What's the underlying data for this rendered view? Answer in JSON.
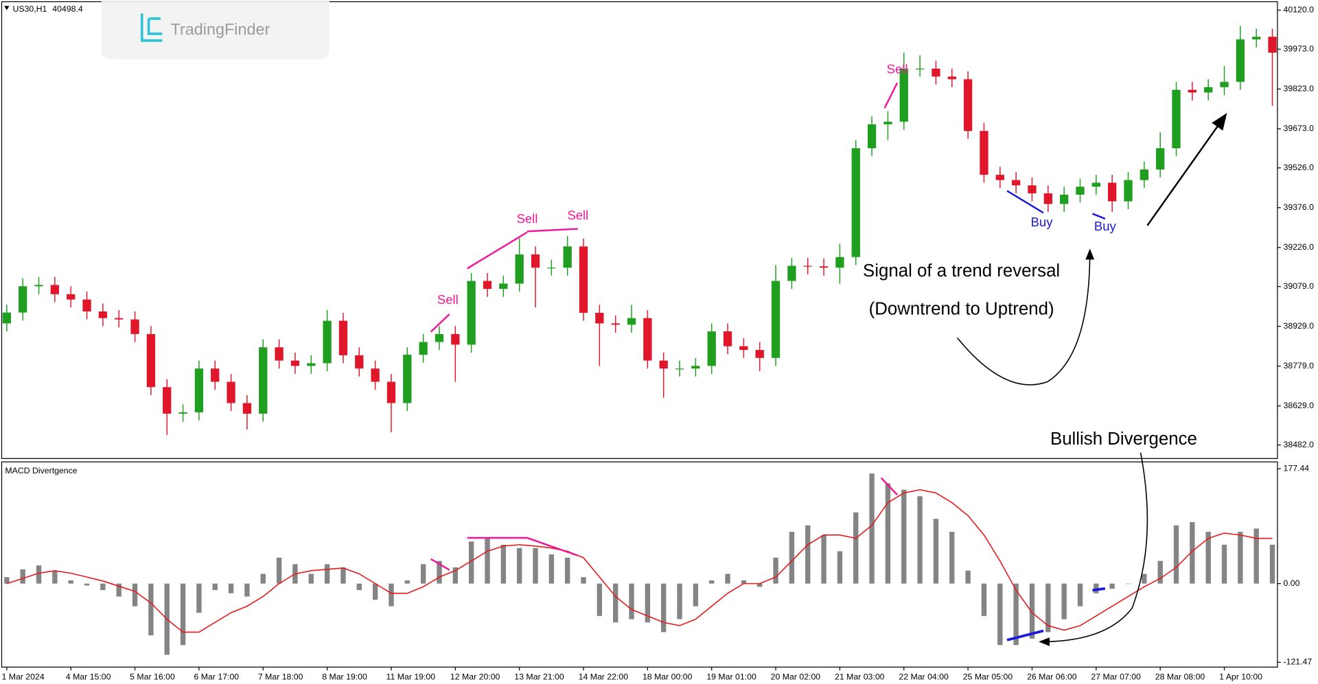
{
  "chart_data": {
    "type": "candlestick",
    "symbol": "US30,H1",
    "header_price": 40498.4,
    "logo": "TradingFinder",
    "up_color": "#1f9e1f",
    "down_color": "#e0162b",
    "categories": [
      "1 Mar 2024",
      null,
      null,
      null,
      "4 Mar 15:00",
      null,
      null,
      null,
      "5 Mar 16:00",
      null,
      null,
      null,
      "6 Mar 17:00",
      null,
      null,
      null,
      "7 Mar 18:00",
      null,
      null,
      null,
      "8 Mar 19:00",
      null,
      null,
      null,
      "11 Mar 19:00",
      null,
      null,
      null,
      "12 Mar 20:00",
      null,
      null,
      null,
      "13 Mar 21:00",
      null,
      null,
      null,
      "14 Mar 22:00",
      null,
      null,
      null,
      "18 Mar 00:00",
      null,
      null,
      null,
      "19 Mar 01:00",
      null,
      null,
      null,
      "20 Mar 02:00",
      null,
      null,
      null,
      "21 Mar 03:00",
      null,
      null,
      null,
      "22 Mar 04:00",
      null,
      null,
      null,
      "25 Mar 05:00",
      null,
      null,
      null,
      "26 Mar 06:00",
      null,
      null,
      null,
      "27 Mar 07:00",
      null,
      null,
      null,
      "28 Mar 08:00",
      null,
      null,
      null,
      "1 Apr 10:00",
      null,
      null,
      null
    ],
    "open": [
      38940,
      38981,
      39080,
      39085,
      39050,
      39030,
      38985,
      38960,
      38955,
      38900,
      38700,
      38600,
      38605,
      38770,
      38720,
      38640,
      38600,
      38850,
      38800,
      38780,
      38790,
      38950,
      38820,
      38770,
      38720,
      38640,
      38822,
      38870,
      38900,
      38860,
      39100,
      39070,
      39090,
      39200,
      39150,
      39150,
      39230,
      38980,
      38940,
      38935,
      38960,
      38800,
      38770,
      38770,
      38780,
      38910,
      38854,
      38840,
      38810,
      39100,
      39157,
      39155,
      39150,
      39190,
      39600,
      39690,
      39700,
      39900,
      39900,
      39870,
      39860,
      39665,
      39500,
      39480,
      39460,
      39430,
      39390,
      39425,
      39455,
      39470,
      39400,
      39480,
      39520,
      39600,
      39820,
      39810,
      39830,
      39850,
      40010,
      40020
    ],
    "high": [
      39011,
      39110,
      39115,
      39115,
      39080,
      39060,
      39015,
      38990,
      38985,
      38930,
      38730,
      38635,
      38800,
      38800,
      38750,
      38670,
      38880,
      38880,
      38830,
      38820,
      38990,
      38980,
      38850,
      38800,
      38750,
      38850,
      38900,
      38930,
      38930,
      39130,
      39130,
      39120,
      39260,
      39230,
      39180,
      39270,
      39260,
      39010,
      38970,
      39010,
      38990,
      38830,
      38800,
      38810,
      38940,
      38940,
      38884,
      38870,
      39160,
      39187,
      39187,
      39185,
      39240,
      39630,
      39720,
      39740,
      39960,
      39950,
      39930,
      39900,
      39890,
      39695,
      39530,
      39510,
      39490,
      39460,
      39455,
      39485,
      39500,
      39500,
      39510,
      39550,
      39660,
      39850,
      39850,
      39860,
      39910,
      40060,
      40050,
      40050
    ],
    "low": [
      38910,
      38951,
      39050,
      39020,
      39000,
      38955,
      38930,
      38925,
      38870,
      38670,
      38520,
      38570,
      38575,
      38690,
      38610,
      38540,
      38570,
      38770,
      38750,
      38750,
      38760,
      38790,
      38740,
      38690,
      38530,
      38610,
      38792,
      38840,
      38720,
      38830,
      39040,
      39040,
      39060,
      39000,
      39120,
      39120,
      38950,
      38780,
      38905,
      38905,
      38770,
      38660,
      38740,
      38740,
      38750,
      38824,
      38810,
      38760,
      38780,
      39070,
      39125,
      39120,
      39090,
      39160,
      39570,
      39630,
      39670,
      39870,
      39840,
      39830,
      39635,
      39470,
      39450,
      39430,
      39400,
      39360,
      39360,
      39395,
      39425,
      39360,
      39370,
      39450,
      39490,
      39570,
      39780,
      39780,
      39800,
      39820,
      39980,
      39760
    ],
    "close": [
      38981,
      39080,
      39085,
      39050,
      39030,
      38985,
      38960,
      38955,
      38900,
      38700,
      38600,
      38605,
      38770,
      38720,
      38640,
      38600,
      38850,
      38800,
      38780,
      38790,
      38950,
      38820,
      38770,
      38720,
      38640,
      38822,
      38870,
      38900,
      38860,
      39100,
      39070,
      39090,
      39200,
      39150,
      39150,
      39230,
      38980,
      38940,
      38935,
      38960,
      38800,
      38770,
      38770,
      38780,
      38910,
      38854,
      38840,
      38810,
      39100,
      39157,
      39155,
      39150,
      39190,
      39600,
      39690,
      39700,
      39900,
      39900,
      39870,
      39860,
      39665,
      39500,
      39480,
      39460,
      39430,
      39390,
      39425,
      39455,
      39470,
      39400,
      39480,
      39520,
      39600,
      39820,
      39810,
      39830,
      39850,
      40010,
      40020,
      39960
    ],
    "ylim": [
      38431,
      40152
    ],
    "yticks": [
      {
        "value": 40120,
        "label": "40120.0"
      },
      {
        "value": 39973,
        "label": "39973.0"
      },
      {
        "value": 39823,
        "label": "39823.0"
      },
      {
        "value": 39673,
        "label": "39673.0"
      },
      {
        "value": 39526,
        "label": "39526.0"
      },
      {
        "value": 39376,
        "label": "39376.0"
      },
      {
        "value": 39226,
        "label": "39226.0"
      },
      {
        "value": 39079,
        "label": "39079.0"
      },
      {
        "value": 38929,
        "label": "38929.0"
      },
      {
        "value": 38779,
        "label": "38779.0"
      },
      {
        "value": 38629,
        "label": "38629.0"
      },
      {
        "value": 38482,
        "label": "38482.0"
      }
    ],
    "macd": {
      "name": "MACD Divertgence",
      "histogram_color": "#6e6e6e",
      "signal_color": "#e8191e",
      "histogram": [
        10,
        22,
        28,
        20,
        5,
        -3,
        -10,
        -20,
        -35,
        -80,
        -110,
        -95,
        -45,
        -10,
        -15,
        -20,
        15,
        40,
        30,
        15,
        30,
        25,
        -10,
        -25,
        -35,
        5,
        30,
        35,
        25,
        65,
        70,
        60,
        55,
        55,
        45,
        40,
        10,
        -50,
        -60,
        -55,
        -60,
        -75,
        -55,
        -35,
        5,
        15,
        5,
        -5,
        40,
        80,
        90,
        75,
        50,
        110,
        170,
        155,
        145,
        135,
        100,
        80,
        20,
        -50,
        -95,
        -95,
        -85,
        -75,
        -55,
        -35,
        -15,
        -8,
        0,
        15,
        35,
        90,
        95,
        80,
        60,
        80,
        85,
        60
      ],
      "signal": [
        0,
        8,
        16,
        20,
        16,
        10,
        4,
        -4,
        -12,
        -30,
        -55,
        -75,
        -75,
        -60,
        -45,
        -35,
        -20,
        0,
        15,
        20,
        22,
        24,
        15,
        0,
        -15,
        -15,
        -5,
        10,
        20,
        35,
        50,
        58,
        60,
        58,
        55,
        50,
        40,
        10,
        -20,
        -40,
        -50,
        -60,
        -65,
        -55,
        -35,
        -15,
        0,
        0,
        10,
        35,
        60,
        75,
        75,
        70,
        90,
        125,
        140,
        145,
        140,
        125,
        105,
        75,
        35,
        -10,
        -45,
        -65,
        -72,
        -65,
        -50,
        -35,
        -20,
        -5,
        8,
        25,
        50,
        70,
        78,
        75,
        70,
        70
      ],
      "ylim": [
        -129,
        188
      ],
      "yticks": [
        {
          "value": 177.44,
          "label": "177.44"
        },
        {
          "value": 0,
          "label": "0.00"
        },
        {
          "value": -121.47,
          "label": "-121.47"
        }
      ]
    },
    "signals": [
      "Sell",
      "Sell",
      "Sell",
      "Sell",
      "Buy",
      "Buy"
    ],
    "annotations": [
      "Signal of a trend reversal",
      "(Downtrend to Uptrend)",
      "Bullish Divergence"
    ]
  }
}
